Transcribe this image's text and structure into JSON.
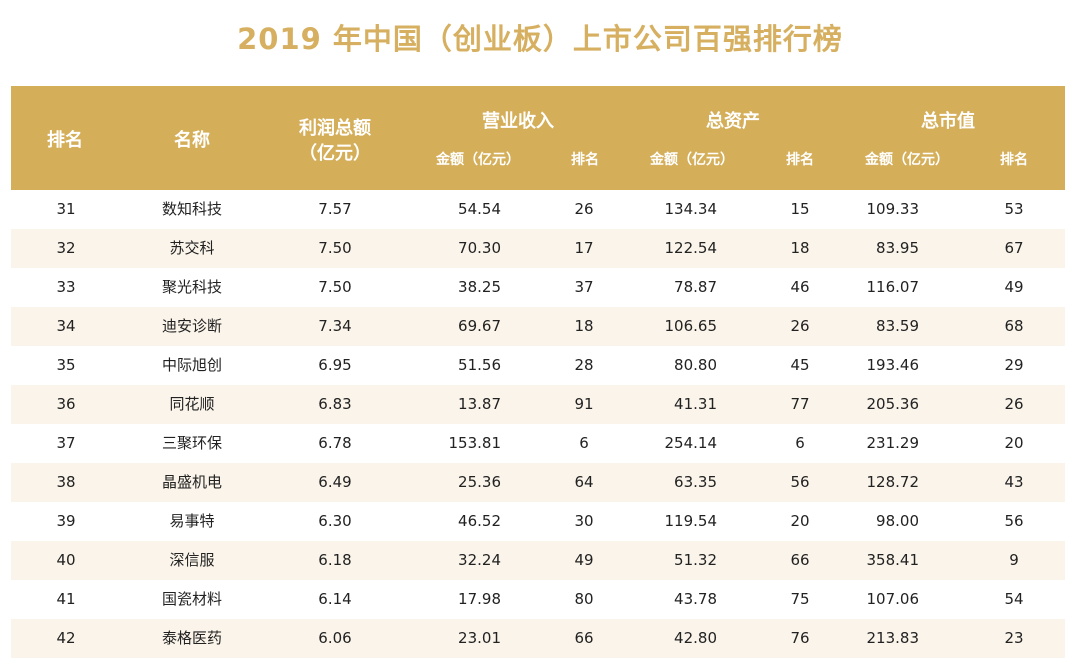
{
  "title": "2019 年中国（创业板）上市公司百强排行榜",
  "header": {
    "rank": "排名",
    "name": "名称",
    "profit_line1": "利润总额",
    "profit_line2": "（亿元）",
    "revenue": "营业收入",
    "assets": "总资产",
    "market_cap": "总市值",
    "amount": "金额（亿元）",
    "sub_rank": "排名"
  },
  "colors": {
    "header_bg": "#d4ae59",
    "title": "#d6b060",
    "alt_row": "#faf4ea"
  },
  "rows": [
    {
      "rank": "31",
      "name": "数知科技",
      "profit": "7.57",
      "revenue": "54.54",
      "revenue_rank": "26",
      "assets": "134.34",
      "assets_rank": "15",
      "market_cap": "109.33",
      "market_cap_rank": "53"
    },
    {
      "rank": "32",
      "name": "苏交科",
      "profit": "7.50",
      "revenue": "70.30",
      "revenue_rank": "17",
      "assets": "122.54",
      "assets_rank": "18",
      "market_cap": "83.95",
      "market_cap_rank": "67"
    },
    {
      "rank": "33",
      "name": "聚光科技",
      "profit": "7.50",
      "revenue": "38.25",
      "revenue_rank": "37",
      "assets": "78.87",
      "assets_rank": "46",
      "market_cap": "116.07",
      "market_cap_rank": "49"
    },
    {
      "rank": "34",
      "name": "迪安诊断",
      "profit": "7.34",
      "revenue": "69.67",
      "revenue_rank": "18",
      "assets": "106.65",
      "assets_rank": "26",
      "market_cap": "83.59",
      "market_cap_rank": "68"
    },
    {
      "rank": "35",
      "name": "中际旭创",
      "profit": "6.95",
      "revenue": "51.56",
      "revenue_rank": "28",
      "assets": "80.80",
      "assets_rank": "45",
      "market_cap": "193.46",
      "market_cap_rank": "29"
    },
    {
      "rank": "36",
      "name": "同花顺",
      "profit": "6.83",
      "revenue": "13.87",
      "revenue_rank": "91",
      "assets": "41.31",
      "assets_rank": "77",
      "market_cap": "205.36",
      "market_cap_rank": "26"
    },
    {
      "rank": "37",
      "name": "三聚环保",
      "profit": "6.78",
      "revenue": "153.81",
      "revenue_rank": "6",
      "assets": "254.14",
      "assets_rank": "6",
      "market_cap": "231.29",
      "market_cap_rank": "20"
    },
    {
      "rank": "38",
      "name": "晶盛机电",
      "profit": "6.49",
      "revenue": "25.36",
      "revenue_rank": "64",
      "assets": "63.35",
      "assets_rank": "56",
      "market_cap": "128.72",
      "market_cap_rank": "43"
    },
    {
      "rank": "39",
      "name": "易事特",
      "profit": "6.30",
      "revenue": "46.52",
      "revenue_rank": "30",
      "assets": "119.54",
      "assets_rank": "20",
      "market_cap": "98.00",
      "market_cap_rank": "56"
    },
    {
      "rank": "40",
      "name": "深信服",
      "profit": "6.18",
      "revenue": "32.24",
      "revenue_rank": "49",
      "assets": "51.32",
      "assets_rank": "66",
      "market_cap": "358.41",
      "market_cap_rank": "9"
    },
    {
      "rank": "41",
      "name": "国瓷材料",
      "profit": "6.14",
      "revenue": "17.98",
      "revenue_rank": "80",
      "assets": "43.78",
      "assets_rank": "75",
      "market_cap": "107.06",
      "market_cap_rank": "54"
    },
    {
      "rank": "42",
      "name": "泰格医药",
      "profit": "6.06",
      "revenue": "23.01",
      "revenue_rank": "66",
      "assets": "42.80",
      "assets_rank": "76",
      "market_cap": "213.83",
      "market_cap_rank": "23"
    }
  ]
}
